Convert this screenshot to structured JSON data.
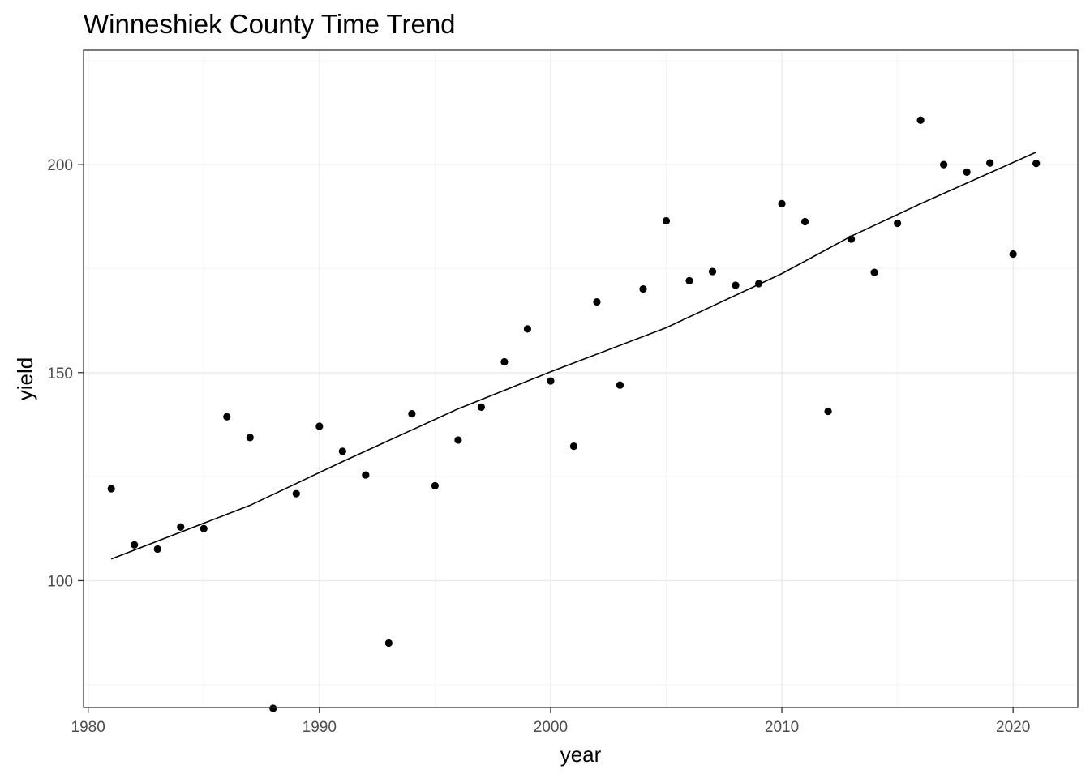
{
  "chart_data": {
    "type": "scatter",
    "title": "Winneshiek County Time Trend",
    "xlabel": "year",
    "ylabel": "yield",
    "xlim": [
      1979.8,
      2022.8
    ],
    "ylim": [
      69.5,
      227.5
    ],
    "x_ticks": [
      1980,
      1990,
      2000,
      2010,
      2020
    ],
    "x_tick_labels": [
      "1980",
      "1990",
      "2000",
      "2010",
      "2020"
    ],
    "y_ticks": [
      100,
      150,
      200
    ],
    "y_tick_labels": [
      "100",
      "150",
      "200"
    ],
    "grid": true,
    "legend": "none",
    "series": [
      {
        "type": "scatter",
        "x": [
          1981,
          1982,
          1983,
          1984,
          1985,
          1986,
          1987,
          1988,
          1989,
          1990,
          1991,
          1992,
          1993,
          1994,
          1995,
          1996,
          1997,
          1998,
          1999,
          2000,
          2001,
          2002,
          2003,
          2004,
          2005,
          2006,
          2007,
          2008,
          2009,
          2010,
          2011,
          2012,
          2013,
          2014,
          2015,
          2016,
          2017,
          2018,
          2019,
          2020,
          2021
        ],
        "values": [
          122.1,
          108.6,
          107.6,
          112.9,
          112.5,
          139.4,
          134.4,
          69.3,
          120.9,
          137.1,
          131.1,
          125.4,
          85.0,
          140.1,
          122.8,
          133.8,
          141.7,
          152.6,
          160.5,
          148.0,
          132.3,
          167.0,
          147.0,
          170.1,
          186.5,
          172.1,
          174.3,
          171.0,
          171.4,
          190.6,
          186.3,
          140.7,
          182.1,
          174.1,
          185.9,
          210.7,
          200.0,
          198.2,
          200.4,
          178.5,
          200.3
        ],
        "color": "#000000"
      },
      {
        "type": "line",
        "x": [
          1981,
          1987,
          1991,
          1996,
          2000,
          2005,
          2010,
          2013,
          2016,
          2021
        ],
        "values": [
          105.2,
          118.1,
          128.6,
          141.3,
          150.2,
          160.8,
          173.8,
          182.8,
          190.6,
          203.0
        ],
        "color": "#000000"
      }
    ]
  },
  "colors": {
    "background": "#ffffff",
    "panel_border": "#333333",
    "grid_major": "#ebebeb",
    "grid_minor": "#f5f5f5",
    "points": "#000000"
  }
}
